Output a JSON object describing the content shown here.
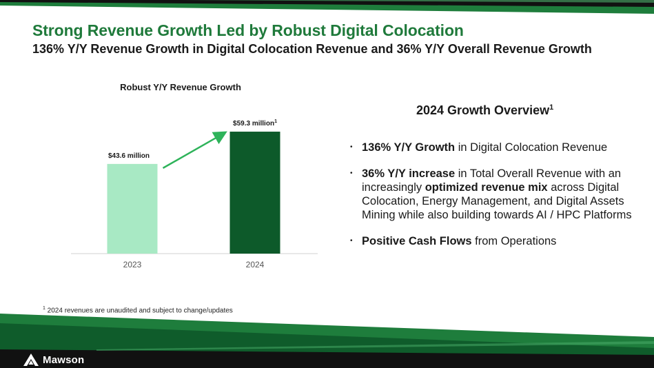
{
  "slide": {
    "title": "Strong Revenue Growth Led by Robust Digital Colocation",
    "subtitle": "136% Y/Y Revenue Growth in Digital Colocation Revenue and 36% Y/Y Overall Revenue Growth",
    "footnote_mark": "1",
    "footnote_text": " 2024 revenues are unaudited and subject to change/updates"
  },
  "chart_data": {
    "type": "bar",
    "title": "Robust Y/Y Revenue Growth",
    "categories": [
      "2023",
      "2024"
    ],
    "values": [
      43.6,
      59.3
    ],
    "data_labels": [
      "$43.6 million",
      "$59.3 million"
    ],
    "data_label_superscripts": [
      "",
      "1"
    ],
    "ylim": [
      0,
      63
    ],
    "xlabel": "",
    "ylabel": "",
    "grid": false,
    "bar_colors": [
      "#a8e9c4",
      "#0d5a2a"
    ],
    "arrow_color": "#2eb35a"
  },
  "overview": {
    "title": "2024 Growth Overview",
    "title_sup": "1",
    "bullet_glyph": "•",
    "bullets": [
      {
        "bold": "136% Y/Y Growth",
        "text": " in Digital Colocation Revenue"
      },
      {
        "bold": "36% Y/Y increase",
        "text": " in Total Overall Revenue with an increasingly ",
        "bold2": "optimized revenue mix",
        "text2": " across Digital Colocation, Energy Management, and Digital Assets Mining while also building towards AI / HPC Platforms"
      },
      {
        "bold": "Positive Cash Flows",
        "text": " from Operations"
      }
    ]
  },
  "brand": {
    "name": "Mawson",
    "primary_green": "#1f7a3b",
    "dark_green": "#0d5a2a",
    "black": "#111111"
  }
}
